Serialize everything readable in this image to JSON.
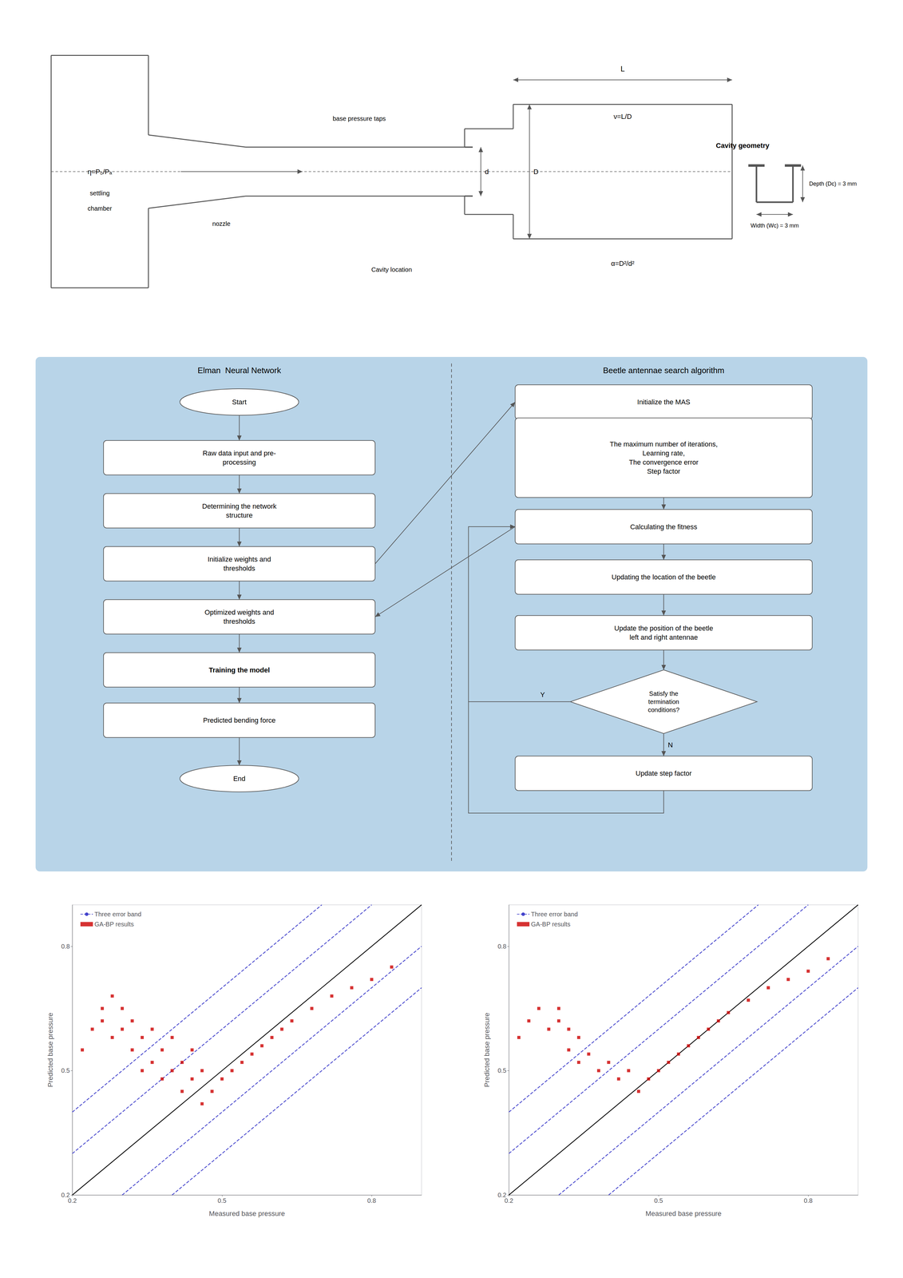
{
  "chart_data": [
    {
      "type": "diagram",
      "color": "#555555",
      "annotations": [
        "L",
        "d",
        "D",
        "η=P₀/Pₐ",
        "settling",
        "chamber",
        "nozzle",
        "base pressure taps",
        "ν=L/D",
        "α=D²/d²",
        "Cavity location",
        "Depth (Dᴄ) = 3 mm",
        "Width (Wᴄ) = 3 mm",
        "Cavity geometry"
      ]
    },
    {
      "type": "flowchart",
      "color": "#b8d4e8",
      "annotations": [
        "Elman  Neural Network",
        "Beetle antennae search algorithm",
        "Start",
        "Raw data input and pre-\nprocessing",
        "Determining the network\nstructure",
        "Initialize weights and\nthresholds",
        "Optimized weights and\nthresholds",
        "Training the model",
        "Predicted bending force",
        "End",
        "Initialize the MAS",
        "The maximum number of iterations,\nLearning rate,\nThe convergence error\nStep factor",
        "Calculating the fitness",
        "Updating the location of the beetle",
        "Update the position of the beetle\nleft and right antennae",
        "Satisfy the\ntermination\nconditions?",
        "Update step factor",
        "N",
        "Y"
      ]
    },
    {
      "type": "scatter",
      "xlabel": "Measured base pressure",
      "ylabel": "Predicted base pressure",
      "xlim": [
        0.2,
        0.9
      ],
      "ylim": [
        0.2,
        0.9
      ],
      "xticks": [
        0.2,
        0.5,
        0.8
      ],
      "yticks": [
        0.2,
        0.5,
        0.8
      ],
      "grid": false,
      "legend": "upper left",
      "series": [
        {
          "type": "line",
          "color": "#000000",
          "line_style": "solid",
          "x": [
            0.2,
            0.9
          ],
          "values": [
            0.2,
            0.9
          ]
        },
        {
          "name": "Three error band",
          "type": "line",
          "color": "#4444cc",
          "line_style": "dashed",
          "x": [
            0.2,
            0.8
          ],
          "values": [
            0.3,
            0.9
          ]
        },
        {
          "name": "Three error band",
          "type": "line",
          "color": "#4444cc",
          "line_style": "dashed",
          "x": [
            0.3,
            0.9
          ],
          "values": [
            0.2,
            0.8
          ]
        },
        {
          "name": "Three error band",
          "type": "line",
          "color": "#4444cc",
          "line_style": "dashed",
          "x": [
            0.2,
            0.7
          ],
          "values": [
            0.4,
            0.9
          ]
        },
        {
          "name": "Three error band",
          "type": "line",
          "color": "#4444cc",
          "line_style": "dashed",
          "x": [
            0.4,
            0.9
          ],
          "values": [
            0.2,
            0.7
          ]
        },
        {
          "name": "GA-BP results",
          "type": "scatter",
          "color": "#cc0000",
          "marker": "square",
          "x": [
            0.22,
            0.24,
            0.26,
            0.26,
            0.28,
            0.28,
            0.3,
            0.3,
            0.32,
            0.32,
            0.34,
            0.34,
            0.36,
            0.36,
            0.38,
            0.38,
            0.4,
            0.4,
            0.42,
            0.42,
            0.44,
            0.44,
            0.46,
            0.46,
            0.48,
            0.5,
            0.52,
            0.54,
            0.56,
            0.58,
            0.6,
            0.62,
            0.64,
            0.68,
            0.72,
            0.76,
            0.8,
            0.84
          ],
          "values": [
            0.55,
            0.6,
            0.62,
            0.65,
            0.58,
            0.68,
            0.6,
            0.65,
            0.62,
            0.55,
            0.5,
            0.58,
            0.52,
            0.6,
            0.48,
            0.55,
            0.5,
            0.58,
            0.52,
            0.45,
            0.48,
            0.55,
            0.5,
            0.42,
            0.45,
            0.48,
            0.5,
            0.52,
            0.54,
            0.56,
            0.58,
            0.6,
            0.62,
            0.65,
            0.68,
            0.7,
            0.72,
            0.75
          ]
        }
      ]
    },
    {
      "type": "scatter",
      "xlabel": "Measured base pressure",
      "ylabel": "Predicted base pressure",
      "xlim": [
        0.2,
        0.9
      ],
      "ylim": [
        0.2,
        0.9
      ],
      "xticks": [
        0.2,
        0.5,
        0.8
      ],
      "yticks": [
        0.2,
        0.5,
        0.8
      ],
      "grid": false,
      "legend": "upper left",
      "series": [
        {
          "type": "line",
          "color": "#000000",
          "line_style": "solid",
          "x": [
            0.2,
            0.9
          ],
          "values": [
            0.2,
            0.9
          ]
        },
        {
          "name": "Three error band",
          "type": "line",
          "color": "#4444cc",
          "line_style": "dashed",
          "x": [
            0.2,
            0.8
          ],
          "values": [
            0.3,
            0.9
          ]
        },
        {
          "name": "Three error band",
          "type": "line",
          "color": "#4444cc",
          "line_style": "dashed",
          "x": [
            0.3,
            0.9
          ],
          "values": [
            0.2,
            0.8
          ]
        },
        {
          "name": "Three error band",
          "type": "line",
          "color": "#4444cc",
          "line_style": "dashed",
          "x": [
            0.2,
            0.7
          ],
          "values": [
            0.4,
            0.9
          ]
        },
        {
          "name": "Three error band",
          "type": "line",
          "color": "#4444cc",
          "line_style": "dashed",
          "x": [
            0.4,
            0.9
          ],
          "values": [
            0.2,
            0.7
          ]
        },
        {
          "name": "GA-BP results",
          "type": "scatter",
          "color": "#cc0000",
          "marker": "square",
          "x": [
            0.22,
            0.24,
            0.26,
            0.28,
            0.3,
            0.3,
            0.32,
            0.32,
            0.34,
            0.34,
            0.36,
            0.38,
            0.4,
            0.42,
            0.44,
            0.46,
            0.48,
            0.5,
            0.52,
            0.54,
            0.56,
            0.58,
            0.6,
            0.62,
            0.64,
            0.68,
            0.72,
            0.76,
            0.8,
            0.84
          ],
          "values": [
            0.58,
            0.62,
            0.65,
            0.6,
            0.62,
            0.65,
            0.6,
            0.55,
            0.52,
            0.58,
            0.54,
            0.5,
            0.52,
            0.48,
            0.5,
            0.45,
            0.48,
            0.5,
            0.52,
            0.54,
            0.56,
            0.58,
            0.6,
            0.62,
            0.64,
            0.67,
            0.7,
            0.72,
            0.74,
            0.77
          ]
        }
      ]
    }
  ]
}
